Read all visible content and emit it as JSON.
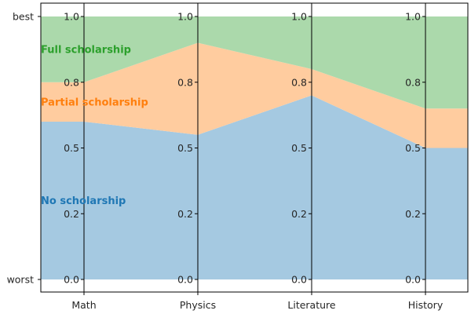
{
  "chart_data": {
    "type": "area",
    "stacked": true,
    "categories": [
      "Math",
      "Physics",
      "Literature",
      "History"
    ],
    "series": [
      {
        "name": "No scholarship",
        "values": [
          0.6,
          0.55,
          0.7,
          0.5
        ],
        "color": "#1f77b4"
      },
      {
        "name": "Partial scholarship",
        "values": [
          0.15,
          0.35,
          0.1,
          0.15
        ],
        "color": "#ff7f0e"
      },
      {
        "name": "Full scholarship",
        "values": [
          0.25,
          0.1,
          0.2,
          0.35
        ],
        "color": "#2ca02c"
      }
    ],
    "ylim": [
      0,
      1
    ],
    "y_outer_labels": [
      "worst",
      "best"
    ],
    "axis_tick_labels": [
      "0.0",
      "0.2",
      "0.5",
      "0.8",
      "1.0"
    ],
    "axis_tick_values": [
      0.0,
      0.25,
      0.5,
      0.75,
      1.0
    ],
    "fill_alpha": 0.4
  }
}
